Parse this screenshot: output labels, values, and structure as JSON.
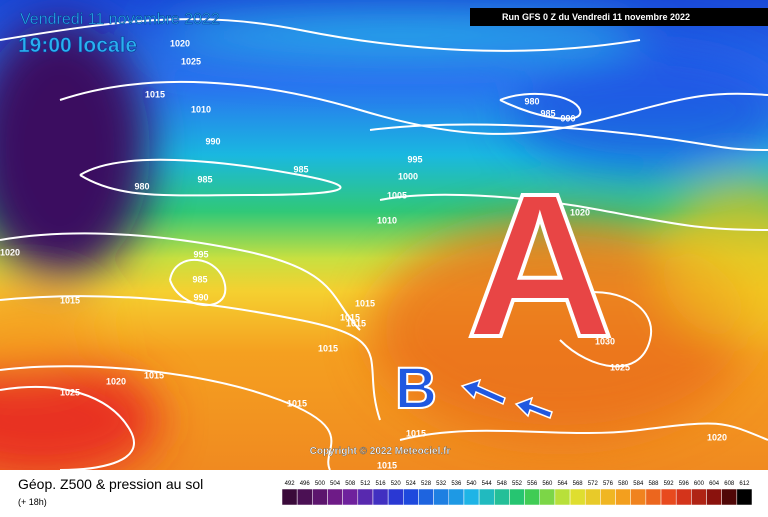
{
  "header": {
    "date": "Vendredi 11 novembre 2022",
    "time": "19:00 locale",
    "run": "Run GFS 0 Z du Vendredi 11 novembre 2022"
  },
  "isobars": [
    "1020",
    "1025",
    "1015",
    "1010",
    "990",
    "985",
    "980",
    "985",
    "995",
    "1000",
    "1005",
    "1010",
    "980",
    "985",
    "990",
    "1020",
    "995",
    "985",
    "990",
    "1020",
    "1015",
    "1015",
    "1015",
    "1015",
    "1015",
    "1015",
    "1020",
    "1025",
    "1015",
    "1030",
    "1025",
    "1015",
    "1015",
    "1020"
  ],
  "symbols": {
    "high": "A",
    "low": "B"
  },
  "copyright": "Copyright © 2022 Meteociel.fr",
  "legend": {
    "title": "Géop. Z500 & pression au sol",
    "lead": "(+ 18h)",
    "scale": [
      492,
      496,
      500,
      504,
      508,
      512,
      516,
      520,
      524,
      528,
      532,
      536,
      540,
      544,
      548,
      552,
      556,
      560,
      564,
      568,
      572,
      576,
      580,
      584,
      588,
      592,
      596,
      600,
      604,
      608,
      612
    ]
  }
}
